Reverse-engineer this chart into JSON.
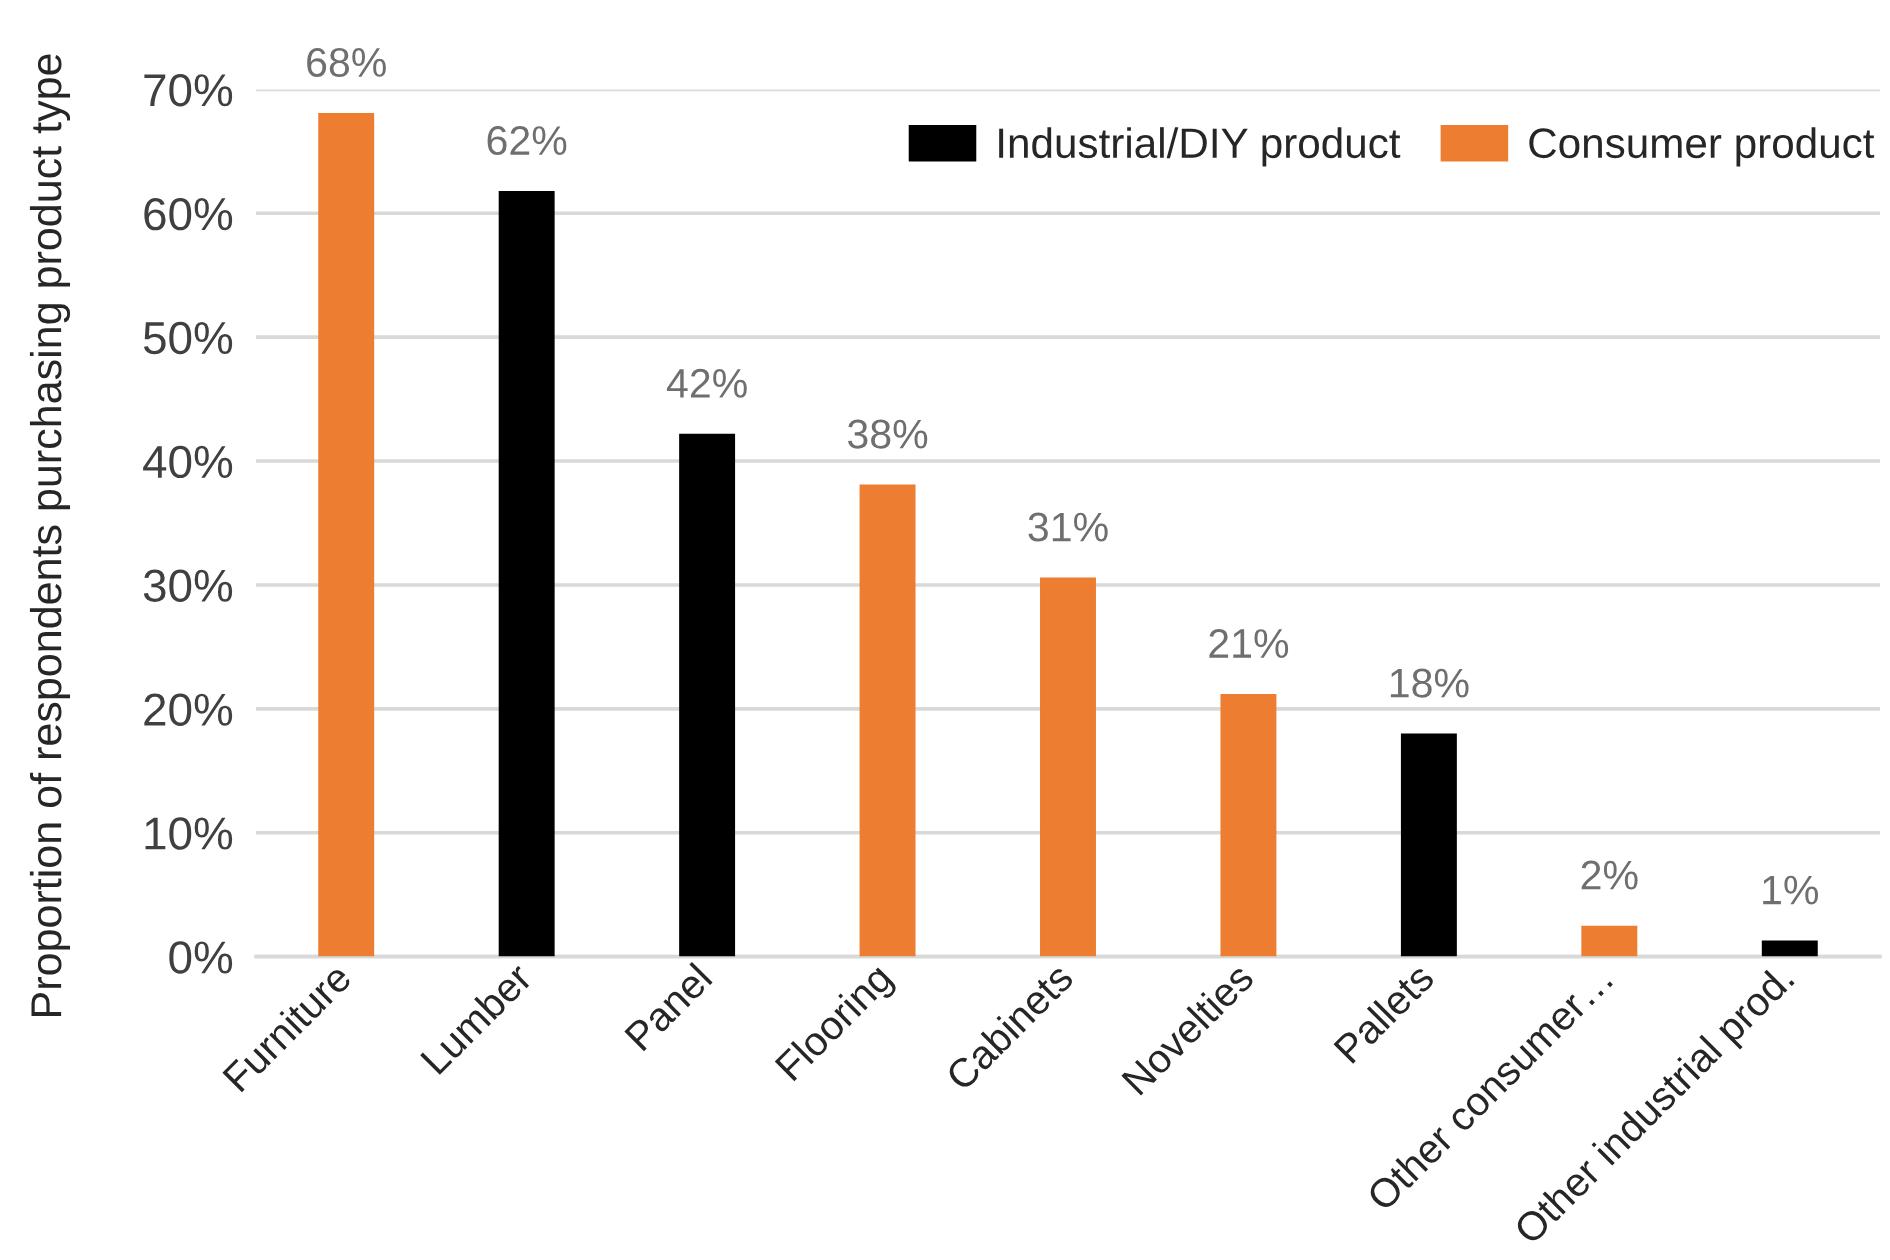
{
  "chart_data": {
    "type": "bar",
    "stacked": true,
    "ylabel": "Proportion of respondents purchasing product type",
    "categories": [
      "Furniture",
      "Lumber",
      "Panel",
      "Flooring",
      "Cabinets",
      "Novelties",
      "Pallets",
      "Other consumer…",
      "Other industrial prod."
    ],
    "series": [
      {
        "name": "Industrial/DIY product",
        "color": "#000000",
        "values": [
          null,
          61.8,
          42.2,
          null,
          null,
          null,
          18.0,
          null,
          1.3
        ],
        "value_labels": [
          null,
          "62%",
          "42%",
          null,
          null,
          null,
          "18%",
          null,
          "1%"
        ]
      },
      {
        "name": "Consumer product",
        "color": "#ed7d31",
        "values": [
          68.1,
          null,
          null,
          38.1,
          30.6,
          21.2,
          null,
          2.5,
          null
        ],
        "value_labels": [
          "68%",
          null,
          null,
          "38%",
          "31%",
          "21%",
          null,
          "2%",
          null
        ]
      }
    ],
    "ylim": [
      0,
      70
    ],
    "yticks": [
      {
        "value": 0,
        "label": "0%"
      },
      {
        "value": 10,
        "label": "10%"
      },
      {
        "value": 20,
        "label": "20%"
      },
      {
        "value": 30,
        "label": "30%"
      },
      {
        "value": 40,
        "label": "40%"
      },
      {
        "value": 50,
        "label": "50%"
      },
      {
        "value": 60,
        "label": "60%"
      },
      {
        "value": 70,
        "label": "70%"
      }
    ],
    "grid": "y",
    "legend": "top right"
  }
}
